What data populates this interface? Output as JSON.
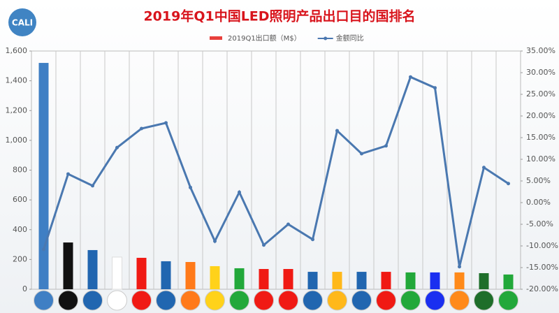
{
  "logo_text": "CALI",
  "chart_data": {
    "type": "bar-line",
    "title": "2019年Q1中国LED照明产品出口目的国排名",
    "categories": [
      null,
      null,
      null,
      null,
      null,
      null,
      null,
      null,
      null,
      null,
      null,
      null,
      null,
      null,
      null,
      null,
      null,
      null,
      null,
      null
    ],
    "series": [
      {
        "name": "2019Q1出口额（M$）",
        "type": "bar",
        "color": "#e8403c",
        "bar_colors": [
          "#3f7fc4",
          "#111111",
          "#2166b0",
          "#ffffff",
          "#f01a14",
          "#2166b0",
          "#ff7a1a",
          "#ffd21a",
          "#22a83a",
          "#f01a14",
          "#f01a14",
          "#2166b0",
          "#ffb81a",
          "#2166b0",
          "#f01a14",
          "#22a83a",
          "#1a2ff0",
          "#ff8a1a",
          "#1e6e2a",
          "#22a83a"
        ],
        "values": [
          1520,
          314,
          263,
          216,
          211,
          188,
          183,
          155,
          141,
          136,
          136,
          117,
          117,
          117,
          117,
          113,
          113,
          113,
          108,
          99
        ]
      },
      {
        "name": "金额同比",
        "type": "line",
        "axis": "y2",
        "color": "#4a78b0",
        "values": [
          -10.8,
          6.6,
          3.9,
          12.7,
          17.1,
          18.4,
          3.5,
          -8.9,
          2.4,
          -9.8,
          -5.0,
          -8.5,
          16.6,
          11.3,
          13.1,
          29.0,
          26.5,
          -14.8,
          8.1,
          4.4
        ]
      }
    ],
    "ylim": [
      0,
      1600
    ],
    "yticks": [
      0,
      200,
      400,
      600,
      800,
      {
        "value": 1000,
        "label": "1,000"
      },
      {
        "value": 1200,
        "label": "1,200"
      },
      {
        "value": 1400,
        "label": "1,400"
      },
      {
        "value": 1600,
        "label": "1,600"
      }
    ],
    "y2lim": [
      -20,
      35
    ],
    "y2ticks": [
      {
        "value": -20,
        "label": "-20.00%"
      },
      {
        "value": -15,
        "label": "-15.00%"
      },
      {
        "value": -10,
        "label": "-10.00%"
      },
      {
        "value": -5,
        "label": "-5.00%"
      },
      {
        "value": 0,
        "label": "0.00%"
      },
      {
        "value": 5,
        "label": "5.00%"
      },
      {
        "value": 10,
        "label": "10.00%"
      },
      {
        "value": 15,
        "label": "15.00%"
      },
      {
        "value": 20,
        "label": "20.00%"
      },
      {
        "value": 25,
        "label": "25.00%"
      },
      {
        "value": 30,
        "label": "30.00%"
      },
      {
        "value": 35,
        "label": "35.00%"
      }
    ],
    "legend": "top",
    "grid": "vertical"
  }
}
